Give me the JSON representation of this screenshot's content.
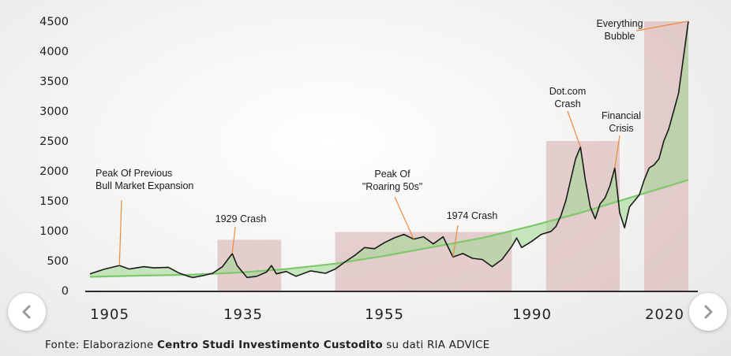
{
  "chart_data": {
    "type": "line",
    "y_ticks": [
      0,
      500,
      1000,
      1500,
      2000,
      2500,
      3000,
      3500,
      4000,
      4500
    ],
    "x_tick_labels": [
      "1905",
      "1935",
      "1955",
      "1990",
      "2020"
    ],
    "x_ticks": [
      1905,
      1935,
      1955,
      1990,
      2020
    ],
    "ylim": [
      0,
      4500
    ],
    "series": [
      {
        "values_by_year": [
          [
            1900,
            280
          ],
          [
            1903,
            360
          ],
          [
            1906,
            420
          ],
          [
            1908,
            360
          ],
          [
            1911,
            400
          ],
          [
            1913,
            380
          ],
          [
            1916,
            390
          ],
          [
            1918,
            300
          ],
          [
            1920,
            240
          ],
          [
            1921,
            220
          ],
          [
            1923,
            250
          ],
          [
            1925,
            290
          ],
          [
            1927,
            400
          ],
          [
            1929,
            620
          ],
          [
            1930,
            420
          ],
          [
            1932,
            220
          ],
          [
            1934,
            240
          ],
          [
            1936,
            310
          ],
          [
            1937,
            420
          ],
          [
            1938,
            280
          ],
          [
            1940,
            320
          ],
          [
            1942,
            240
          ],
          [
            1945,
            330
          ],
          [
            1948,
            290
          ],
          [
            1950,
            360
          ],
          [
            1952,
            480
          ],
          [
            1954,
            590
          ],
          [
            1956,
            720
          ],
          [
            1958,
            700
          ],
          [
            1960,
            800
          ],
          [
            1962,
            880
          ],
          [
            1964,
            940
          ],
          [
            1966,
            860
          ],
          [
            1968,
            900
          ],
          [
            1970,
            780
          ],
          [
            1972,
            900
          ],
          [
            1974,
            560
          ],
          [
            1976,
            620
          ],
          [
            1978,
            540
          ],
          [
            1980,
            520
          ],
          [
            1982,
            400
          ],
          [
            1984,
            520
          ],
          [
            1986,
            740
          ],
          [
            1987,
            880
          ],
          [
            1988,
            720
          ],
          [
            1990,
            820
          ],
          [
            1992,
            940
          ],
          [
            1994,
            990
          ],
          [
            1995,
            1070
          ],
          [
            1996,
            1250
          ],
          [
            1997,
            1500
          ],
          [
            1998,
            1850
          ],
          [
            1999,
            2200
          ],
          [
            2000,
            2400
          ],
          [
            2001,
            1850
          ],
          [
            2002,
            1400
          ],
          [
            2003,
            1200
          ],
          [
            2004,
            1450
          ],
          [
            2005,
            1550
          ],
          [
            2006,
            1750
          ],
          [
            2007,
            2050
          ],
          [
            2008,
            1300
          ],
          [
            2009,
            1050
          ],
          [
            2010,
            1400
          ],
          [
            2011,
            1500
          ],
          [
            2012,
            1600
          ],
          [
            2013,
            1850
          ],
          [
            2014,
            2050
          ],
          [
            2015,
            2100
          ],
          [
            2016,
            2200
          ],
          [
            2017,
            2500
          ],
          [
            2018,
            2700
          ],
          [
            2019,
            3000
          ],
          [
            2020,
            3300
          ],
          [
            2021,
            3900
          ],
          [
            2022,
            4500
          ]
        ]
      },
      {
        "values_by_year": [
          [
            1900,
            230
          ],
          [
            1910,
            250
          ],
          [
            1920,
            265
          ],
          [
            1930,
            300
          ],
          [
            1940,
            360
          ],
          [
            1950,
            450
          ],
          [
            1960,
            580
          ],
          [
            1970,
            730
          ],
          [
            1980,
            880
          ],
          [
            1990,
            1080
          ],
          [
            2000,
            1300
          ],
          [
            2010,
            1550
          ],
          [
            2022,
            1850
          ]
        ]
      }
    ],
    "shaded_periods": [
      {
        "from": 1926,
        "to": 1939,
        "ymax": 850
      },
      {
        "from": 1950,
        "to": 1986,
        "ymax": 980
      },
      {
        "from": 1993,
        "to": 2008,
        "ymax": 2500
      },
      {
        "from": 2013,
        "to": 2022,
        "ymax": 4500
      }
    ],
    "annotations": [
      {
        "lines": [
          "Peak Of Previous",
          "Bull Market Expansion"
        ],
        "year": 1906,
        "value": 420,
        "align": "left"
      },
      {
        "lines": [
          "1929 Crash"
        ],
        "year": 1929,
        "value": 620,
        "align": "center"
      },
      {
        "lines": [
          "Peak Of",
          "\"Roaring 50s\""
        ],
        "year": 1966,
        "value": 860,
        "align": "center"
      },
      {
        "lines": [
          "1974 Crash"
        ],
        "year": 1974,
        "value": 560,
        "align": "center"
      },
      {
        "lines": [
          "Dot.com",
          "Crash"
        ],
        "year": 2000,
        "value": 2400,
        "align": "center"
      },
      {
        "lines": [
          "Financial",
          "Crisis"
        ],
        "year": 2007,
        "value": 2050,
        "align": "center"
      },
      {
        "lines": [
          "Everything",
          "Bubble"
        ],
        "year": 2022,
        "value": 4500,
        "align": "center"
      }
    ],
    "colors": {
      "price_line": "#1a1a1a",
      "trend_line": "#7ec86b",
      "fill": "#9fd88f",
      "shade": "#d9b3b3",
      "annotation_pointer": "#f08a3c"
    }
  },
  "source": {
    "prefix": "Fonte: Elaborazione ",
    "bold": "Centro Studi Investimento Custodito",
    "suffix": " su dati RIA ADVICE"
  },
  "nav": {
    "prev_icon": "chevron-left-icon",
    "next_icon": "chevron-right-icon"
  }
}
